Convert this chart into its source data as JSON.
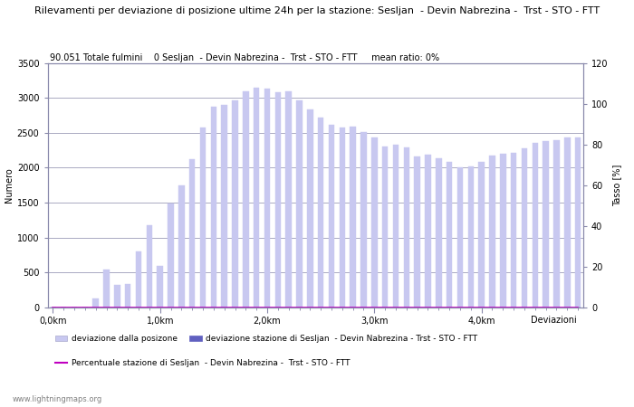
{
  "title": "Rilevamenti per deviazione di posizione ultime 24h per la stazione: Sesljan  - Devin Nabrezina -  Trst - STO - FTT",
  "annotation": "90.051 Totale fulmini    0 Sesljan  - Devin Nabrezina -  Trst - STO - FTT     mean ratio: 0%",
  "ylabel_left": "Numero",
  "ylabel_right": "Tasso [%]",
  "xlabel": "Deviazioni",
  "watermark": "www.lightningmaps.org",
  "ylim_left": [
    0,
    3500
  ],
  "ylim_right": [
    0,
    120
  ],
  "yticks_left": [
    0,
    500,
    1000,
    1500,
    2000,
    2500,
    3000,
    3500
  ],
  "yticks_right": [
    0,
    20,
    40,
    60,
    80,
    100,
    120
  ],
  "xtick_labels": [
    "0,0km",
    "1,0km",
    "2,0km",
    "3,0km",
    "4,0km"
  ],
  "xtick_positions": [
    0,
    10,
    20,
    30,
    40
  ],
  "bar_values_light": [
    0,
    0,
    0,
    0,
    120,
    540,
    320,
    330,
    800,
    1180,
    590,
    1490,
    1750,
    2120,
    2570,
    2870,
    2900,
    2960,
    3100,
    3150,
    3130,
    3080,
    3100,
    2960,
    2840,
    2720,
    2620,
    2580,
    2590,
    2510,
    2440,
    2300,
    2330,
    2290,
    2160,
    2190,
    2140,
    2090,
    2000,
    2020,
    2090,
    2180,
    2200,
    2210,
    2280,
    2350,
    2380,
    2390,
    2430,
    2440
  ],
  "bar_values_dark": [
    0,
    0,
    0,
    0,
    0,
    0,
    0,
    0,
    0,
    0,
    0,
    0,
    0,
    0,
    0,
    0,
    0,
    0,
    0,
    0,
    0,
    0,
    0,
    0,
    0,
    0,
    0,
    0,
    0,
    0,
    0,
    0,
    0,
    0,
    0,
    0,
    0,
    0,
    0,
    0,
    0,
    0,
    0,
    0,
    0,
    0,
    0,
    0,
    0,
    0
  ],
  "percentage_line": [
    0,
    0,
    0,
    0,
    0,
    0,
    0,
    0,
    0,
    0,
    0,
    0,
    0,
    0,
    0,
    0,
    0,
    0,
    0,
    0,
    0,
    0,
    0,
    0,
    0,
    0,
    0,
    0,
    0,
    0,
    0,
    0,
    0,
    0,
    0,
    0,
    0,
    0,
    0,
    0,
    0,
    0,
    0,
    0,
    0,
    0,
    0,
    0,
    0,
    0
  ],
  "color_light_bar": "#c8c8f0",
  "color_dark_bar": "#6060c0",
  "color_line": "#c000c0",
  "bg_color": "#ffffff",
  "grid_color": "#8888aa",
  "n_bars": 50,
  "bar_width": 0.55,
  "legend_light_label": "deviazione dalla posizone",
  "legend_dark_label": "deviazione stazione di Sesljan  - Devin Nabrezina - Trst - STO - FTT",
  "legend_line_label": "Percentuale stazione di Sesljan  - Devin Nabrezina -  Trst - STO - FTT",
  "title_fontsize": 8,
  "annotation_fontsize": 7,
  "axis_label_fontsize": 7,
  "tick_fontsize": 7,
  "legend_fontsize": 6.5,
  "watermark_fontsize": 6
}
